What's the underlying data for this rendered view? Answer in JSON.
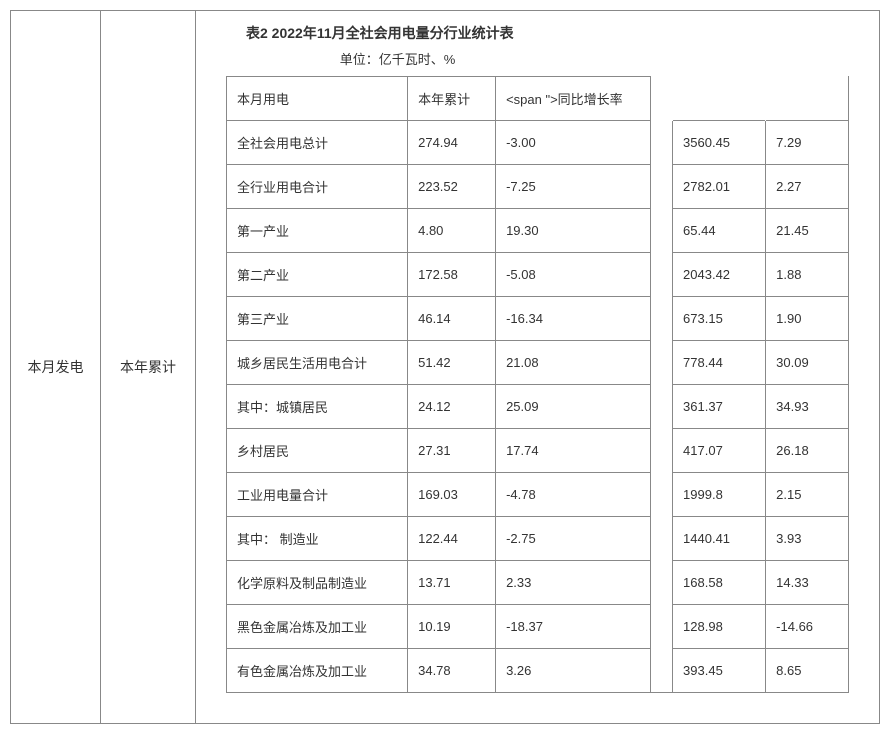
{
  "leftLabel": "本月发电",
  "midLabel": "本年累计",
  "title": "表2 2022年11月全社会用电量分行业统计表",
  "unit": "单位：亿千瓦时、%",
  "headers": {
    "c1": "本月用电",
    "c2": "本年累计",
    "c3": "<span \">同比增长率"
  },
  "rows": [
    {
      "name": "全社会用电总计",
      "v1": "274.94",
      "v2": "-3.00",
      "v3": "3560.45",
      "v4": "7.29"
    },
    {
      "name": "全行业用电合计",
      "v1": "223.52",
      "v2": "-7.25",
      "v3": "2782.01",
      "v4": "2.27"
    },
    {
      "name": "第一产业",
      "v1": "4.80",
      "v2": "19.30",
      "v3": "65.44",
      "v4": "21.45"
    },
    {
      "name": "第二产业",
      "v1": "172.58",
      "v2": "-5.08",
      "v3": "2043.42",
      "v4": "1.88"
    },
    {
      "name": "第三产业",
      "v1": "46.14",
      "v2": "-16.34",
      "v3": "673.15",
      "v4": "1.90"
    },
    {
      "name": "城乡居民生活用电合计",
      "v1": "51.42",
      "v2": "21.08",
      "v3": "778.44",
      "v4": "30.09"
    },
    {
      "name": "其中：城镇居民",
      "v1": "24.12",
      "v2": "25.09",
      "v3": "361.37",
      "v4": "34.93"
    },
    {
      "name": "乡村居民",
      "v1": "27.31",
      "v2": "17.74",
      "v3": "417.07",
      "v4": "26.18"
    },
    {
      "name": "工业用电量合计",
      "v1": "169.03",
      "v2": "-4.78",
      "v3": "1999.8",
      "v4": "2.15"
    },
    {
      "name": "其中： 制造业",
      "v1": "122.44",
      "v2": "-2.75",
      "v3": "1440.41",
      "v4": "3.93"
    },
    {
      "name": "化学原料及制品制造业",
      "v1": "13.71",
      "v2": "2.33",
      "v3": "168.58",
      "v4": "14.33"
    },
    {
      "name": "黑色金属冶炼及加工业",
      "v1": "10.19",
      "v2": "-18.37",
      "v3": "128.98",
      "v4": "-14.66"
    },
    {
      "name": "有色金属冶炼及加工业",
      "v1": "34.78",
      "v2": "3.26",
      "v3": "393.45",
      "v4": "8.65"
    }
  ],
  "colors": {
    "border": "#888888",
    "text": "#333333",
    "background": "#ffffff"
  }
}
